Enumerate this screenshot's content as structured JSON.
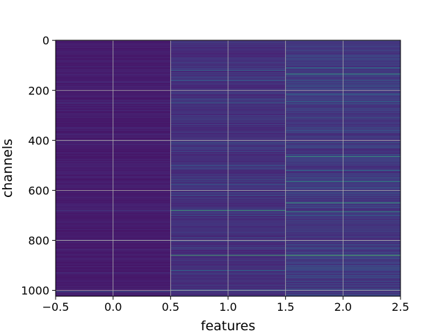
{
  "chart_data": {
    "type": "heatmap",
    "title": "",
    "xlabel": "features",
    "ylabel": "channels",
    "x_categories": [
      0,
      1,
      2
    ],
    "n_rows": 1024,
    "xlim": [
      -0.5,
      2.5
    ],
    "ylim": [
      1023.5,
      -0.5
    ],
    "y_inverted": true,
    "grid": true,
    "colormap": "viridis",
    "value_range": [
      0,
      1
    ],
    "x_ticks": [
      "−0.5",
      "0.0",
      "0.5",
      "1.0",
      "1.5",
      "2.0",
      "2.5"
    ],
    "y_ticks": [
      "0",
      "200",
      "400",
      "600",
      "800",
      "1000"
    ],
    "x_tick_values": [
      -0.5,
      0.0,
      0.5,
      1.0,
      1.5,
      2.0,
      2.5
    ],
    "y_tick_values": [
      0,
      200,
      400,
      600,
      800,
      1000
    ],
    "columns": [
      {
        "feature": 0,
        "base": 0.06,
        "spread": 0.08,
        "highlights": [
          [
            1005,
            0.35
          ],
          [
            250,
            0.22
          ],
          [
            680,
            0.22
          ]
        ]
      },
      {
        "feature": 1,
        "base": 0.1,
        "spread": 0.16,
        "highlights": [
          [
            120,
            0.45
          ],
          [
            160,
            0.4
          ],
          [
            250,
            0.4
          ],
          [
            410,
            0.4
          ],
          [
            430,
            0.35
          ],
          [
            500,
            0.35
          ],
          [
            555,
            0.4
          ],
          [
            575,
            0.4
          ],
          [
            600,
            0.45
          ],
          [
            620,
            0.35
          ],
          [
            680,
            0.75
          ],
          [
            700,
            0.35
          ],
          [
            830,
            0.35
          ],
          [
            860,
            0.85
          ],
          [
            920,
            0.5
          ],
          [
            1000,
            0.45
          ]
        ]
      },
      {
        "feature": 2,
        "base": 0.12,
        "spread": 0.2,
        "highlights": [
          [
            110,
            0.55
          ],
          [
            135,
            0.7
          ],
          [
            160,
            0.45
          ],
          [
            185,
            0.4
          ],
          [
            215,
            0.5
          ],
          [
            245,
            0.45
          ],
          [
            310,
            0.4
          ],
          [
            350,
            0.4
          ],
          [
            410,
            0.4
          ],
          [
            465,
            0.7
          ],
          [
            520,
            0.5
          ],
          [
            550,
            0.45
          ],
          [
            565,
            0.65
          ],
          [
            590,
            0.4
          ],
          [
            650,
            0.75
          ],
          [
            685,
            0.7
          ],
          [
            700,
            0.45
          ],
          [
            800,
            0.35
          ],
          [
            830,
            0.4
          ],
          [
            860,
            0.9
          ],
          [
            910,
            0.45
          ],
          [
            950,
            0.4
          ],
          [
            995,
            0.4
          ]
        ]
      }
    ]
  }
}
